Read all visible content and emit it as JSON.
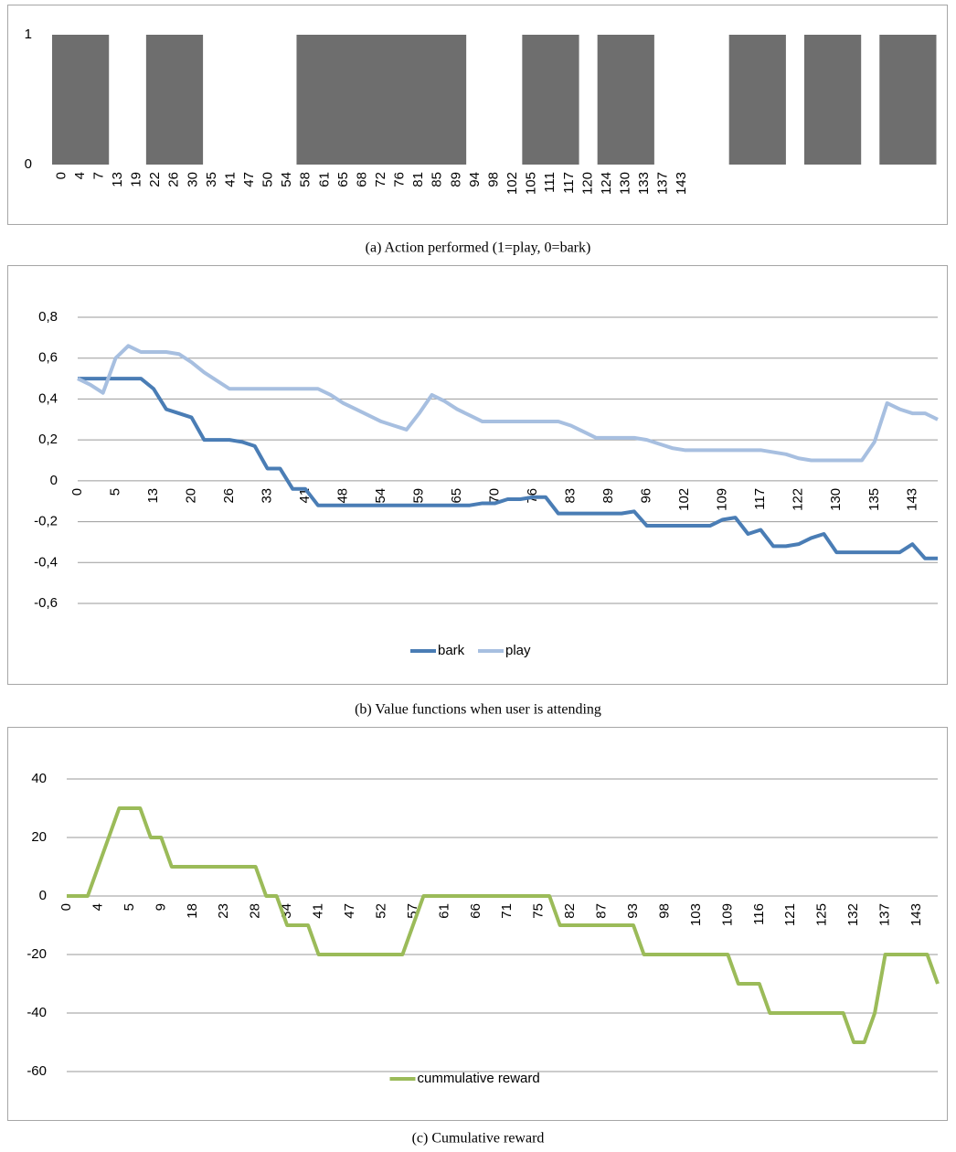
{
  "chart_data": [
    {
      "type": "bar",
      "caption": "(a) Action performed (1=play, 0=bark)",
      "color": "#6e6e6e",
      "grid": false,
      "ylim": [
        0,
        1
      ],
      "yticks": [
        0,
        1
      ],
      "categories": [
        "0",
        "4",
        "7",
        "13",
        "19",
        "22",
        "26",
        "30",
        "35",
        "41",
        "47",
        "50",
        "54",
        "58",
        "61",
        "65",
        "68",
        "72",
        "76",
        "81",
        "85",
        "89",
        "94",
        "98",
        "102",
        "105",
        "111",
        "117",
        "120",
        "124",
        "130",
        "133",
        "137",
        "143",
        null,
        null,
        null,
        null,
        null,
        null,
        null,
        null,
        null,
        null,
        null,
        null,
        null
      ],
      "values": [
        1,
        1,
        1,
        0,
        0,
        1,
        1,
        1,
        0,
        0,
        0,
        0,
        0,
        1,
        1,
        1,
        1,
        1,
        1,
        1,
        1,
        1,
        0,
        0,
        0,
        1,
        1,
        1,
        0,
        1,
        1,
        1,
        0,
        0,
        0,
        0,
        1,
        1,
        1,
        0,
        1,
        1,
        1,
        0,
        1,
        1,
        1
      ]
    },
    {
      "type": "line",
      "caption": "(b) Value functions when user is attending",
      "grid": true,
      "legend": "bottom",
      "ylim": [
        -0.6,
        0.8
      ],
      "yticks": [
        {
          "value": 0.8,
          "label": "0,8"
        },
        {
          "value": 0.6,
          "label": "0,6"
        },
        {
          "value": 0.4,
          "label": "0,4"
        },
        {
          "value": 0.2,
          "label": "0,2"
        },
        0,
        {
          "value": -0.2,
          "label": "-0,2"
        },
        {
          "value": -0.4,
          "label": "-0,4"
        },
        {
          "value": -0.6,
          "label": "-0,6"
        }
      ],
      "categories": [
        "0",
        null,
        null,
        "5",
        null,
        null,
        "13",
        null,
        null,
        "20",
        null,
        null,
        "26",
        null,
        null,
        "33",
        null,
        null,
        "41",
        null,
        null,
        "48",
        null,
        null,
        "54",
        null,
        null,
        "59",
        null,
        null,
        "65",
        null,
        null,
        "70",
        null,
        null,
        "76",
        null,
        null,
        "83",
        null,
        null,
        "89",
        null,
        null,
        "96",
        null,
        null,
        "102",
        null,
        null,
        "109",
        null,
        null,
        "117",
        null,
        null,
        "122",
        null,
        null,
        "130",
        null,
        null,
        "135",
        null,
        null,
        "143",
        null,
        null
      ],
      "series": [
        {
          "name": "bark",
          "color": "#4a7db5",
          "values": [
            0.5,
            0.5,
            0.5,
            0.5,
            0.5,
            0.5,
            0.45,
            0.35,
            0.33,
            0.31,
            0.2,
            0.2,
            0.2,
            0.19,
            0.17,
            0.06,
            0.06,
            -0.04,
            -0.04,
            -0.12,
            -0.12,
            -0.12,
            -0.12,
            -0.12,
            -0.12,
            -0.12,
            -0.12,
            -0.12,
            -0.12,
            -0.12,
            -0.12,
            -0.12,
            -0.11,
            -0.11,
            -0.09,
            -0.09,
            -0.08,
            -0.08,
            -0.16,
            -0.16,
            -0.16,
            -0.16,
            -0.16,
            -0.16,
            -0.15,
            -0.22,
            -0.22,
            -0.22,
            -0.22,
            -0.22,
            -0.22,
            -0.19,
            -0.18,
            -0.26,
            -0.24,
            -0.32,
            -0.32,
            -0.31,
            -0.28,
            -0.26,
            -0.35,
            -0.35,
            -0.35,
            -0.35,
            -0.35,
            -0.35,
            -0.31,
            -0.38,
            -0.38
          ]
        },
        {
          "name": "play",
          "color": "#a7bfe0",
          "values": [
            0.5,
            0.47,
            0.43,
            0.6,
            0.66,
            0.63,
            0.63,
            0.63,
            0.62,
            0.58,
            0.53,
            0.49,
            0.45,
            0.45,
            0.45,
            0.45,
            0.45,
            0.45,
            0.45,
            0.45,
            0.42,
            0.38,
            0.35,
            0.32,
            0.29,
            0.27,
            0.25,
            0.33,
            0.42,
            0.39,
            0.35,
            0.32,
            0.29,
            0.29,
            0.29,
            0.29,
            0.29,
            0.29,
            0.29,
            0.27,
            0.24,
            0.21,
            0.21,
            0.21,
            0.21,
            0.2,
            0.18,
            0.16,
            0.15,
            0.15,
            0.15,
            0.15,
            0.15,
            0.15,
            0.15,
            0.14,
            0.13,
            0.11,
            0.1,
            0.1,
            0.1,
            0.1,
            0.1,
            0.19,
            0.38,
            0.35,
            0.33,
            0.33,
            0.3
          ]
        }
      ]
    },
    {
      "type": "line",
      "caption": "(c) Cumulative reward",
      "grid": true,
      "legend": "bottom",
      "ylim": [
        -60,
        40
      ],
      "yticks": [
        40,
        20,
        0,
        -20,
        -40,
        -60
      ],
      "categories": [
        "0",
        null,
        null,
        "4",
        null,
        null,
        "5",
        null,
        null,
        "9",
        null,
        null,
        "18",
        null,
        null,
        "23",
        null,
        null,
        "28",
        null,
        null,
        "34",
        null,
        null,
        "41",
        null,
        null,
        "47",
        null,
        null,
        "52",
        null,
        null,
        "57",
        null,
        null,
        "61",
        null,
        null,
        "66",
        null,
        null,
        "71",
        null,
        null,
        "75",
        null,
        null,
        "82",
        null,
        null,
        "87",
        null,
        null,
        "93",
        null,
        null,
        "98",
        null,
        null,
        "103",
        null,
        null,
        "109",
        null,
        null,
        "116",
        null,
        null,
        "121",
        null,
        null,
        "125",
        null,
        null,
        "132",
        null,
        null,
        "137",
        null,
        null,
        "143",
        null,
        null
      ],
      "series": [
        {
          "name": "cummulative reward",
          "color": "#9bbb59",
          "values": [
            0,
            0,
            0,
            10,
            20,
            30,
            30,
            30,
            20,
            20,
            10,
            10,
            10,
            10,
            10,
            10,
            10,
            10,
            10,
            0,
            0,
            -10,
            -10,
            -10,
            -20,
            -20,
            -20,
            -20,
            -20,
            -20,
            -20,
            -20,
            -20,
            -10,
            0,
            0,
            0,
            0,
            0,
            0,
            0,
            0,
            0,
            0,
            0,
            0,
            0,
            -10,
            -10,
            -10,
            -10,
            -10,
            -10,
            -10,
            -10,
            -20,
            -20,
            -20,
            -20,
            -20,
            -20,
            -20,
            -20,
            -20,
            -30,
            -30,
            -30,
            -40,
            -40,
            -40,
            -40,
            -40,
            -40,
            -40,
            -40,
            -50,
            -50,
            -40,
            -20,
            -20,
            -20,
            -20,
            -20,
            -30
          ]
        }
      ]
    }
  ]
}
